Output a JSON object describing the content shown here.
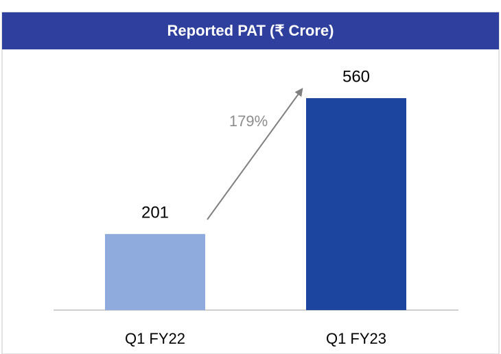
{
  "chart_data": {
    "type": "bar",
    "title": "Reported PAT (₹ Crore)",
    "categories": [
      "Q1 FY22",
      "Q1 FY23"
    ],
    "values": [
      201,
      560
    ],
    "colors": [
      "#8faadc",
      "#1c45a0"
    ],
    "annotation": "179%",
    "ylim": [
      0,
      600
    ]
  }
}
